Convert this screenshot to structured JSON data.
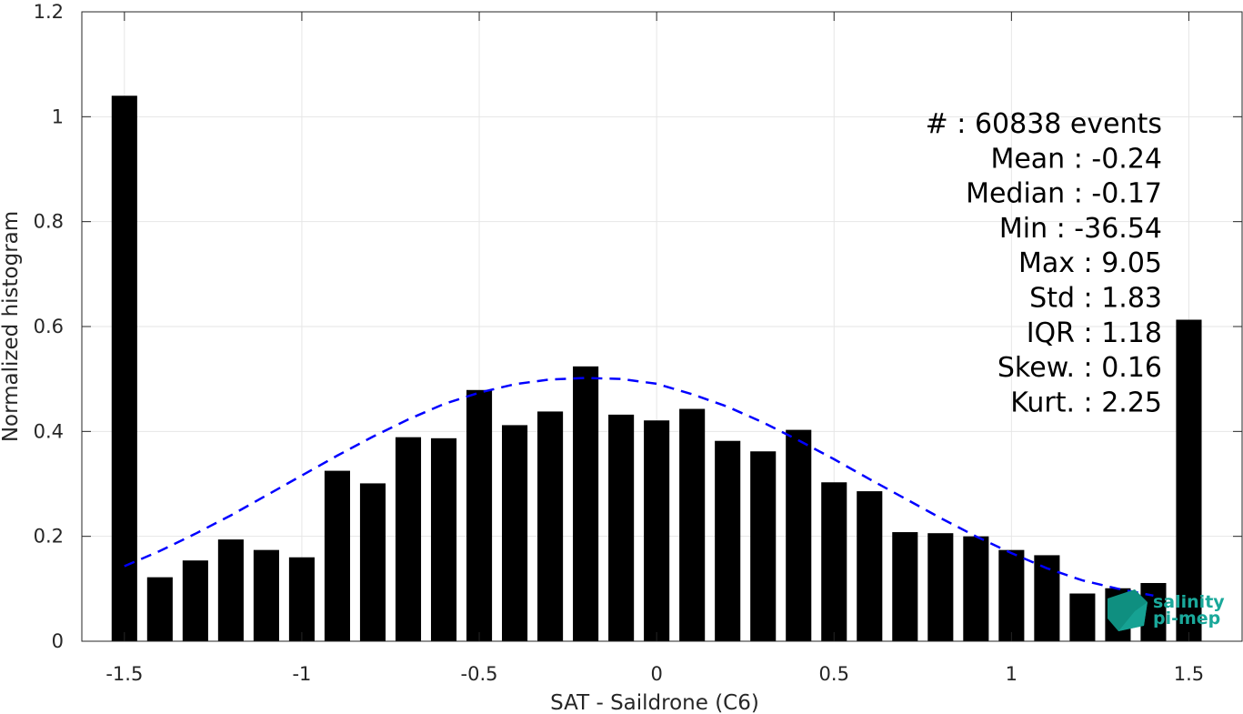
{
  "chart_data": {
    "type": "bar",
    "xlabel": "SAT - Saildrone (C6)",
    "ylabel": "Normalized histogram",
    "xlim": [
      -1.5,
      1.5
    ],
    "ylim": [
      0,
      1.2
    ],
    "grid": true,
    "x_ticks": [
      "-1.5",
      "-1",
      "-0.5",
      "0",
      "0.5",
      "1",
      "1.5"
    ],
    "y_ticks": [
      "0",
      "0.2",
      "0.4",
      "0.6",
      "0.8",
      "1",
      "1.2"
    ],
    "x_tick_values": [
      -1.5,
      -1,
      -0.5,
      0,
      0.5,
      1,
      1.5
    ],
    "y_tick_values": [
      0,
      0.2,
      0.4,
      0.6,
      0.8,
      1,
      1.2
    ],
    "bar_width": 0.072,
    "x": [
      -1.5,
      -1.4,
      -1.3,
      -1.2,
      -1.1,
      -1.0,
      -0.9,
      -0.8,
      -0.7,
      -0.6,
      -0.5,
      -0.4,
      -0.3,
      -0.2,
      -0.1,
      0.0,
      0.1,
      0.2,
      0.3,
      0.4,
      0.5,
      0.6,
      0.7,
      0.8,
      0.9,
      1.0,
      1.1,
      1.2,
      1.3,
      1.4,
      1.5
    ],
    "values": [
      1.04,
      0.122,
      0.154,
      0.194,
      0.174,
      0.16,
      0.325,
      0.301,
      0.389,
      0.387,
      0.479,
      0.412,
      0.438,
      0.524,
      0.432,
      0.421,
      0.443,
      0.382,
      0.362,
      0.403,
      0.303,
      0.286,
      0.208,
      0.206,
      0.2,
      0.174,
      0.164,
      0.091,
      0.101,
      0.111,
      0.613
    ],
    "bar_color": "#000000",
    "fit_curve": {
      "style": "dashed",
      "color": "#0000ff",
      "x": [
        -1.5,
        -1.4,
        -1.3,
        -1.2,
        -1.1,
        -1.0,
        -0.9,
        -0.8,
        -0.7,
        -0.6,
        -0.5,
        -0.4,
        -0.3,
        -0.2,
        -0.1,
        0.0,
        0.1,
        0.2,
        0.3,
        0.4,
        0.5,
        0.6,
        0.7,
        0.8,
        0.9,
        1.0,
        1.1,
        1.2,
        1.3,
        1.4
      ],
      "y": [
        0.143,
        0.172,
        0.205,
        0.24,
        0.278,
        0.316,
        0.354,
        0.39,
        0.423,
        0.452,
        0.474,
        0.49,
        0.499,
        0.502,
        0.5,
        0.491,
        0.471,
        0.447,
        0.417,
        0.383,
        0.347,
        0.309,
        0.272,
        0.235,
        0.2,
        0.168,
        0.139,
        0.116,
        0.1,
        0.087
      ]
    },
    "stats_box": {
      "position": "top-right",
      "lines": [
        "#  : 60838 events",
        "Mean : -0.24",
        "Median : -0.17",
        "Min : -36.54",
        "Max : 9.05",
        "Std : 1.83",
        "IQR : 1.18",
        "Skew. : 0.16",
        "Kurt. : 2.25"
      ]
    }
  },
  "logo": {
    "line1": "salinity",
    "line2": "pi-mep",
    "color": "#1aa89a",
    "shape_color": "#0f8f80"
  }
}
